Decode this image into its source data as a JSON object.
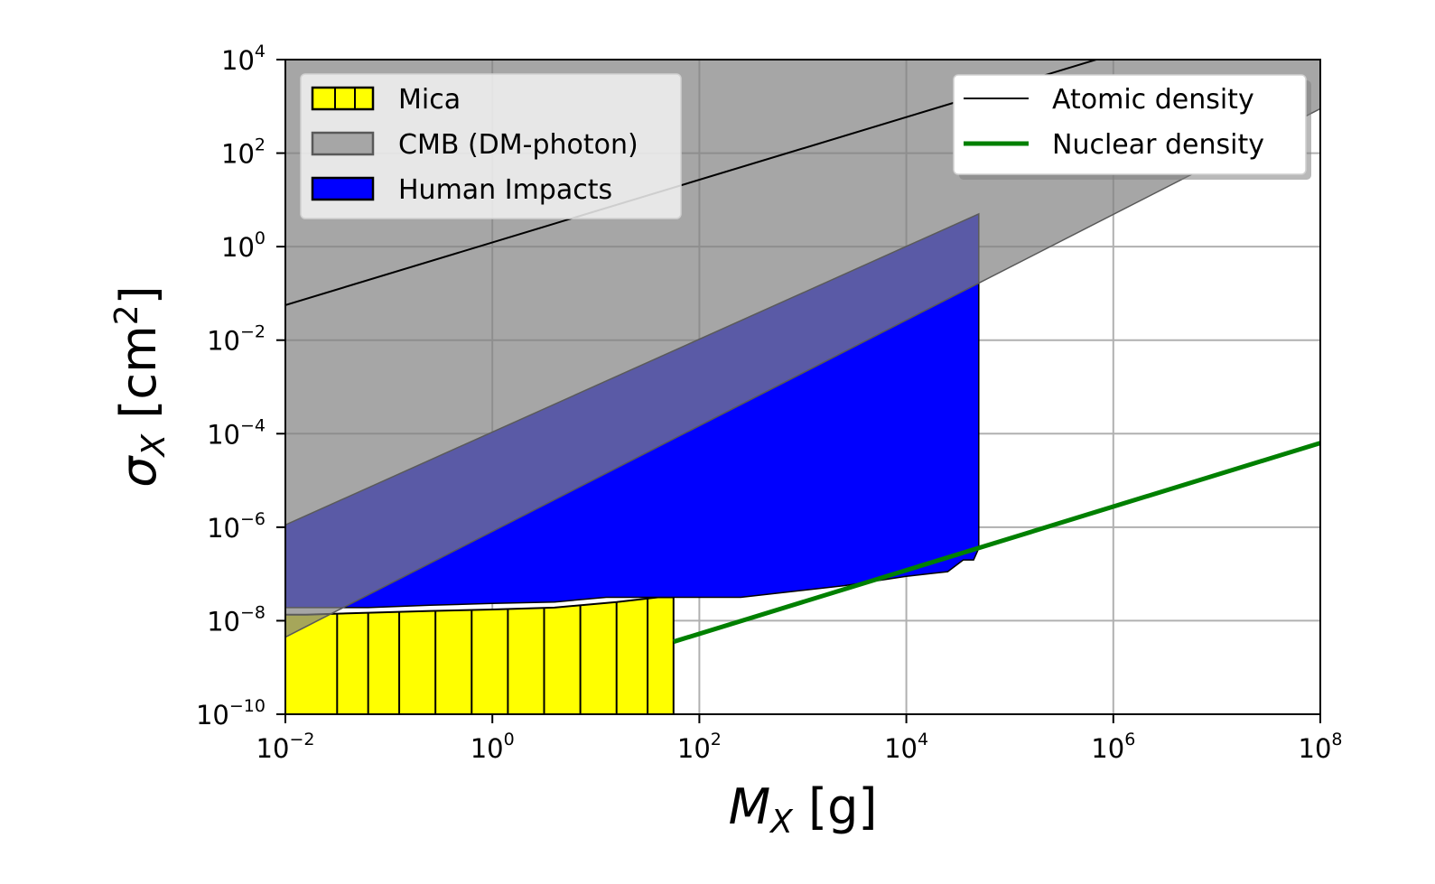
{
  "chart_data": {
    "type": "area",
    "xscale": "log",
    "yscale": "log",
    "xlim_exp": [
      -2,
      8
    ],
    "ylim_exp": [
      -10,
      4
    ],
    "xticks": [
      {
        "base": "10",
        "exp": "−2"
      },
      {
        "base": "10",
        "exp": "0"
      },
      {
        "base": "10",
        "exp": "2"
      },
      {
        "base": "10",
        "exp": "4"
      },
      {
        "base": "10",
        "exp": "6"
      },
      {
        "base": "10",
        "exp": "8"
      }
    ],
    "yticks": [
      {
        "base": "10",
        "exp": "−10"
      },
      {
        "base": "10",
        "exp": "−8"
      },
      {
        "base": "10",
        "exp": "−6"
      },
      {
        "base": "10",
        "exp": "−4"
      },
      {
        "base": "10",
        "exp": "−2"
      },
      {
        "base": "10",
        "exp": "0"
      },
      {
        "base": "10",
        "exp": "2"
      },
      {
        "base": "10",
        "exp": "4"
      }
    ],
    "xtick_exps": [
      -2,
      0,
      2,
      4,
      6,
      8
    ],
    "ytick_exps": [
      -10,
      -8,
      -6,
      -4,
      -2,
      0,
      2,
      4
    ],
    "xlabel": {
      "main": "M",
      "sub": "X",
      "unit": " [g]"
    },
    "ylabel": {
      "main": "σ",
      "sub": "X",
      "unit": " [cm",
      "sup": "2",
      "close": "]"
    },
    "grid": true,
    "series": [
      {
        "name": "Mica",
        "kind": "hatched-region",
        "color": "#ffff00",
        "edge": "#000000",
        "log10_x": [
          -2,
          -1.8,
          -1.2,
          -0.6,
          0,
          0.6,
          1.2,
          1.6,
          1.75
        ],
        "log10_y_top": [
          -7.87,
          -7.87,
          -7.83,
          -7.79,
          -7.76,
          -7.72,
          -7.6,
          -7.5,
          -7.5
        ],
        "log10_y_bottom": -10,
        "hatch_log10_x": [
          -1.5,
          -1.2,
          -0.9,
          -0.55,
          -0.2,
          0.15,
          0.5,
          0.85,
          1.2,
          1.5
        ]
      },
      {
        "name": "CMB (DM-photon)",
        "kind": "shaded-band",
        "color": "#808080",
        "opacity": 0.7,
        "log10_x": [
          -2,
          8
        ],
        "log10_y_top": [
          4,
          4
        ],
        "log10_y_bottom": [
          -8.35,
          2.95
        ]
      },
      {
        "name": "Human Impacts",
        "kind": "region",
        "color": "#0000ff",
        "top": {
          "log10_x": [
            -2,
            4.7
          ],
          "log10_y": [
            -5.95,
            0.7
          ]
        },
        "bottom": {
          "log10_x": [
            4.7,
            4.7,
            4.65,
            4.55,
            4.4,
            4.0,
            3.4,
            3.0,
            2.4,
            1.3,
            1.1,
            0.6,
            0,
            -0.6,
            -1.2,
            -2
          ],
          "log10_y": [
            -1.65,
            -6.45,
            -6.7,
            -6.7,
            -6.95,
            -7.05,
            -7.25,
            -7.35,
            -7.5,
            -7.5,
            -7.5,
            -7.6,
            -7.63,
            -7.67,
            -7.72,
            -7.72
          ]
        }
      },
      {
        "name": "Atomic density",
        "kind": "line",
        "color": "#000000",
        "log10_x": [
          -2,
          8
        ],
        "log10_y": [
          -1.25,
          5.45
        ]
      },
      {
        "name": "Nuclear density",
        "kind": "line",
        "color": "#008000",
        "log10_x": [
          1.75,
          8
        ],
        "log10_y": [
          -8.45,
          -4.2
        ]
      }
    ],
    "legends": [
      {
        "placement": "upper-left",
        "entries": [
          "Mica",
          "CMB (DM-photon)",
          "Human Impacts"
        ]
      },
      {
        "placement": "upper-right",
        "entries": [
          "Atomic density",
          "Nuclear density"
        ]
      }
    ]
  }
}
